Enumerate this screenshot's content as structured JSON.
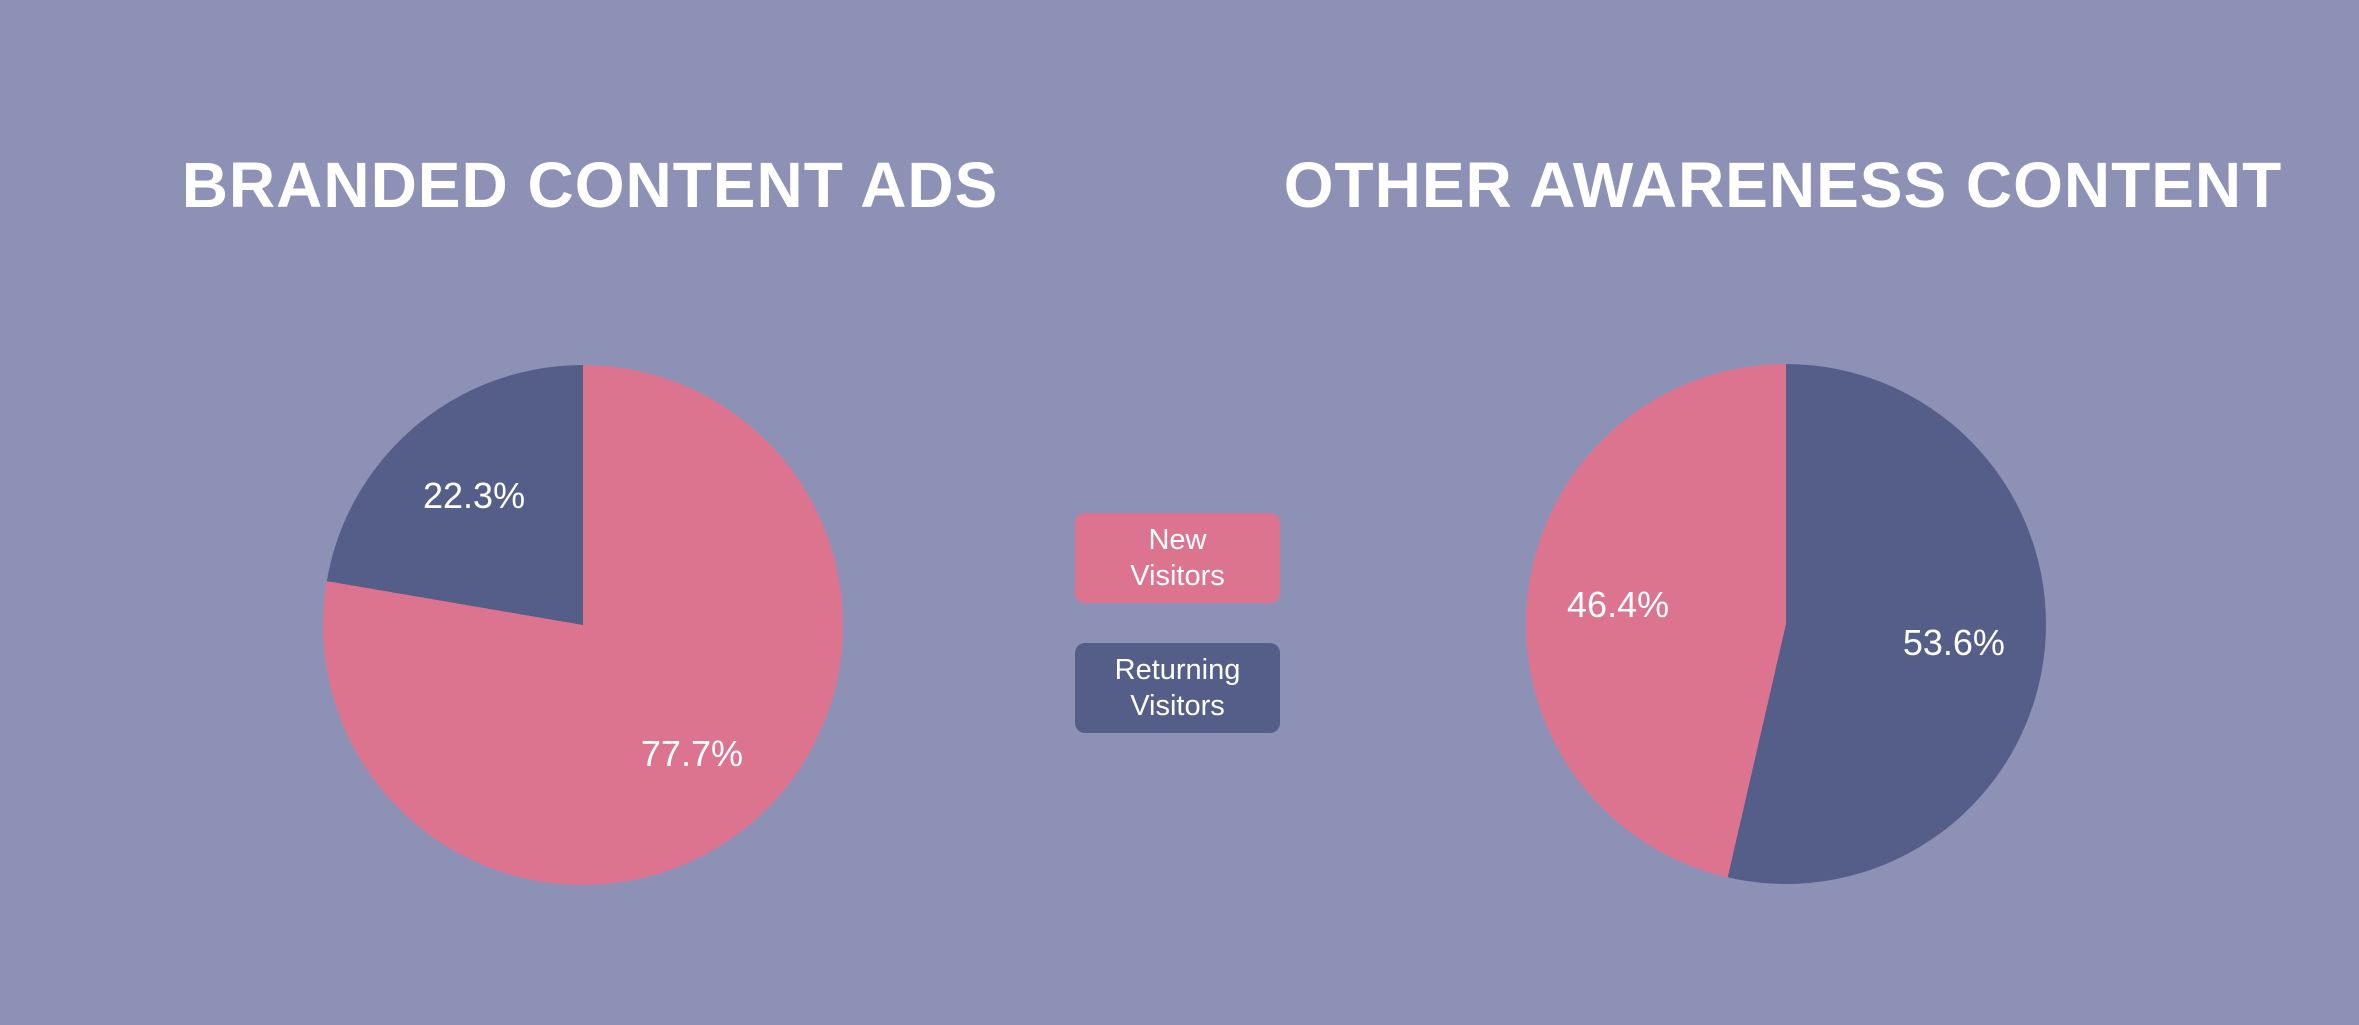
{
  "background_color": "#8d91b6",
  "colors": {
    "new_visitors": "#dc7490",
    "returning_visitors": "#555e88",
    "text": "#ffffff"
  },
  "legend": {
    "items": [
      {
        "key": "new-visitors",
        "label_lines": [
          "New",
          "Visitors"
        ],
        "color": "#dc7490"
      },
      {
        "key": "returning-visitors",
        "label_lines": [
          "Returning",
          "Visitors"
        ],
        "color": "#555e88"
      }
    ]
  },
  "chart_data": [
    {
      "type": "pie",
      "title": "BRANDED CONTENT ADS",
      "start_angle_deg": 0,
      "direction": "clockwise",
      "legend_position": "center-between-charts",
      "slices": [
        {
          "label": "New Visitors",
          "value": 77.7,
          "display": "77.7%",
          "color": "#dc7490"
        },
        {
          "label": "Returning Visitors",
          "value": 22.3,
          "display": "22.3%",
          "color": "#555e88"
        }
      ]
    },
    {
      "type": "pie",
      "title": "OTHER AWARENESS CONTENT",
      "start_angle_deg": 0,
      "direction": "clockwise",
      "legend_position": "center-between-charts",
      "slices": [
        {
          "label": "Returning Visitors",
          "value": 53.6,
          "display": "53.6%",
          "color": "#555e88"
        },
        {
          "label": "New Visitors",
          "value": 46.4,
          "display": "46.4%",
          "color": "#dc7490"
        }
      ]
    }
  ]
}
